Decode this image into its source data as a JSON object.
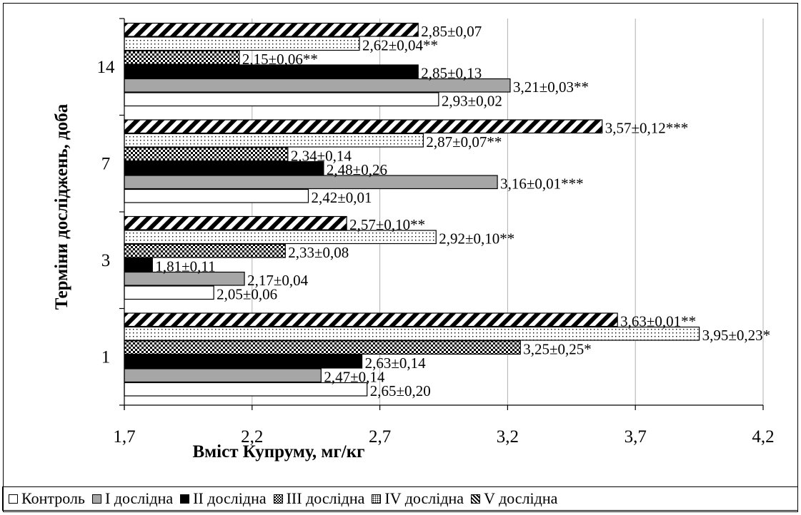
{
  "chart_data": {
    "type": "bar",
    "orientation": "horizontal",
    "title": "",
    "xlabel": "Вміст Купруму, мг/кг",
    "ylabel": "Терміни досліджень, доба",
    "xlim": [
      1.7,
      4.2
    ],
    "xticks": [
      "1,7",
      "2,2",
      "2,7",
      "3,2",
      "3,7",
      "4,2"
    ],
    "xtick_values": [
      1.7,
      2.2,
      2.7,
      3.2,
      3.7,
      4.2
    ],
    "grid": "vertical",
    "legend_position": "bottom",
    "categories": [
      "1",
      "3",
      "7",
      "14"
    ],
    "series": [
      {
        "name": "Контроль",
        "fill": "#ffffff",
        "pattern": "none",
        "values": [
          2.65,
          2.05,
          2.42,
          2.93
        ],
        "labels": [
          "2,65±0,20",
          "2,05±0,06",
          "2,42±0,01",
          "2,93±0,02"
        ]
      },
      {
        "name": "I дослідна",
        "fill": "#a6a6a6",
        "pattern": "none",
        "values": [
          2.47,
          2.17,
          3.16,
          3.21
        ],
        "labels": [
          "2,47±0,14",
          "2,17±0,04",
          "3,16±0,01***",
          "3,21±0,03**"
        ]
      },
      {
        "name": "II дослідна",
        "fill": "#000000",
        "pattern": "none",
        "values": [
          2.63,
          1.81,
          2.48,
          2.85
        ],
        "labels": [
          "2,63±0,14",
          "1,81±0,11",
          "2,48±0,26",
          "2,85±0,13"
        ]
      },
      {
        "name": "III дослідна",
        "fill": "#ffffff",
        "pattern": "checker",
        "values": [
          3.25,
          2.33,
          2.34,
          2.15
        ],
        "labels": [
          "3,25±0,25*",
          "2,33±0,08",
          "2,34±0,14",
          "2,15±0,06**"
        ]
      },
      {
        "name": "IV дослідна",
        "fill": "#ffffff",
        "pattern": "dots",
        "values": [
          3.95,
          2.92,
          2.87,
          2.62
        ],
        "labels": [
          "3,95±0,23*",
          "2,92±0,10**",
          "2,87±0,07**",
          "2,62±0,04**"
        ]
      },
      {
        "name": "V дослідна",
        "fill": "#ffffff",
        "pattern": "diagonal",
        "values": [
          3.63,
          2.57,
          3.57,
          2.85
        ],
        "labels": [
          "3,63±0,01**",
          "2,57±0,10**",
          "3,57±0,12***",
          "2,85±0,07"
        ]
      }
    ]
  }
}
